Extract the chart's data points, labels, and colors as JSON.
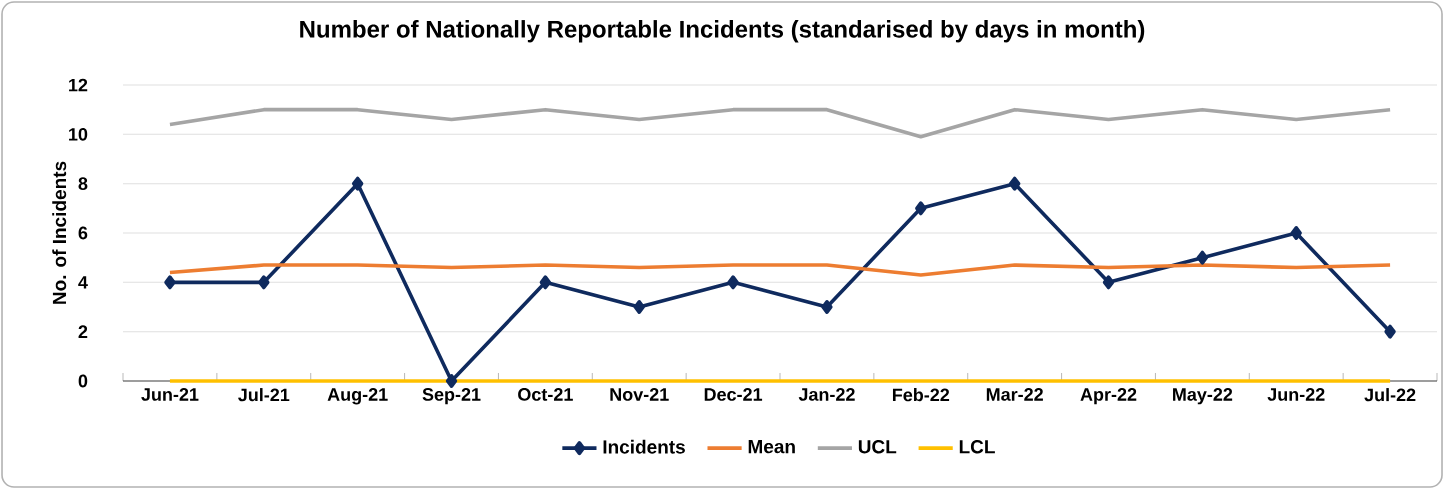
{
  "chart_data": {
    "type": "line",
    "title": "Number of Nationally Reportable Incidents (standarised by days in month)",
    "ylabel": "No. of Incidents",
    "categories": [
      "Jun-21",
      "Jul-21",
      "Aug-21",
      "Sep-21",
      "Oct-21",
      "Nov-21",
      "Dec-21",
      "Jan-22",
      "Feb-22",
      "Mar-22",
      "Apr-22",
      "May-22",
      "Jun-22",
      "Jul-22"
    ],
    "series": [
      {
        "name": "Incidents",
        "color": "#0f2a5e",
        "marker": "diamond",
        "values": [
          4,
          4,
          8,
          0,
          4,
          3,
          4,
          3,
          7,
          8,
          4,
          5,
          6,
          2
        ]
      },
      {
        "name": "Mean",
        "color": "#ed7d31",
        "marker": "none",
        "values": [
          4.4,
          4.7,
          4.7,
          4.6,
          4.7,
          4.6,
          4.7,
          4.7,
          4.3,
          4.7,
          4.6,
          4.7,
          4.6,
          4.7
        ]
      },
      {
        "name": "UCL",
        "color": "#a5a5a5",
        "marker": "none",
        "values": [
          10.4,
          11.0,
          11.0,
          10.6,
          11.0,
          10.6,
          11.0,
          11.0,
          9.9,
          11.0,
          10.6,
          11.0,
          10.6,
          11.0
        ]
      },
      {
        "name": "LCL",
        "color": "#ffc000",
        "marker": "none",
        "values": [
          0,
          0,
          0,
          0,
          0,
          0,
          0,
          0,
          0,
          0,
          0,
          0,
          0,
          0
        ]
      }
    ],
    "ylim": [
      0,
      12
    ],
    "yticks": [
      0,
      2,
      4,
      6,
      8,
      10,
      12
    ],
    "grid": "y",
    "legend": "bottom",
    "line_style": "solid"
  }
}
